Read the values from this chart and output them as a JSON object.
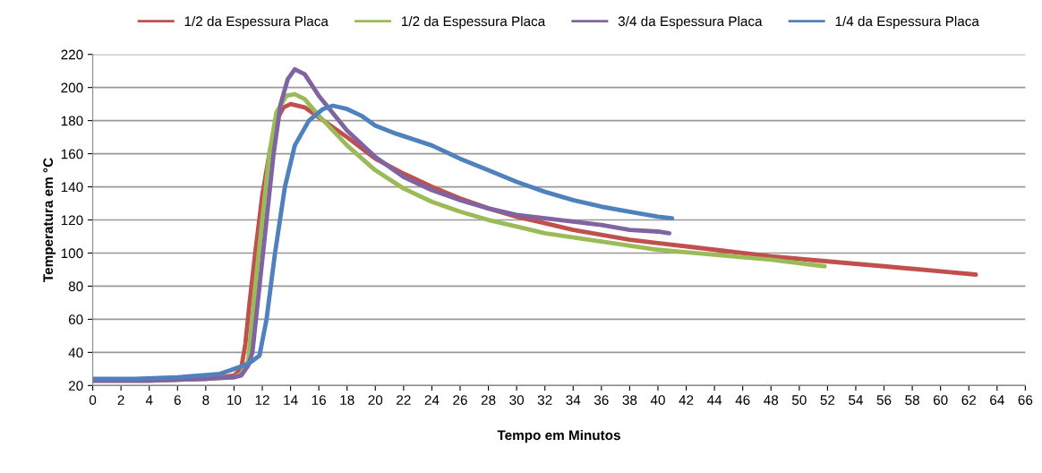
{
  "chart_data": {
    "type": "line",
    "xlabel": "Tempo em Minutos",
    "ylabel": "Temperatura em °C",
    "xlim": [
      0,
      66
    ],
    "xticks": [
      0,
      2,
      4,
      6,
      8,
      10,
      12,
      14,
      16,
      18,
      20,
      22,
      24,
      26,
      28,
      30,
      32,
      34,
      36,
      38,
      40,
      42,
      44,
      46,
      48,
      50,
      52,
      54,
      56,
      58,
      60,
      62,
      64,
      66
    ],
    "ylim": [
      20,
      220
    ],
    "yticks": [
      20,
      40,
      60,
      80,
      100,
      120,
      140,
      160,
      180,
      200,
      220
    ],
    "grid": "y",
    "legend": "top",
    "marker": "none",
    "line_style": "solid",
    "series": [
      {
        "name": "1/2 da Espessura Placa",
        "color": "#c0504d",
        "x": [
          0,
          4,
          8,
          10,
          10.5,
          10.8,
          11.1,
          11.5,
          12,
          12.5,
          13,
          13.5,
          14,
          15,
          16,
          18,
          20,
          22,
          24,
          26,
          28,
          30,
          32,
          34,
          36,
          38,
          40,
          44,
          48,
          52,
          56,
          60,
          62.5
        ],
        "values": [
          23,
          23,
          24,
          26,
          30,
          45,
          70,
          100,
          135,
          160,
          180,
          188,
          190,
          188,
          182,
          170,
          157,
          148,
          140,
          133,
          127,
          122,
          118,
          114,
          111,
          108,
          106,
          102,
          98,
          95,
          92,
          89,
          87
        ]
      },
      {
        "name": "1/2 da Espessura Placa",
        "color": "#9bbb59",
        "x": [
          0,
          4,
          8,
          10,
          10.5,
          11,
          11.5,
          12,
          12.5,
          13,
          13.7,
          14.3,
          15,
          16,
          18,
          20,
          22,
          24,
          26,
          28,
          30,
          32,
          36,
          40,
          44,
          48,
          51.8
        ],
        "values": [
          23,
          23,
          24,
          25,
          27,
          35,
          80,
          120,
          160,
          185,
          195,
          196,
          193,
          183,
          165,
          150,
          139,
          131,
          125,
          120,
          116,
          112,
          107,
          102,
          99,
          96,
          92
        ]
      },
      {
        "name": "3/4 da Espessura Placa",
        "color": "#8064a2",
        "x": [
          0,
          4,
          8,
          10,
          10.5,
          11,
          11.3,
          11.8,
          12.3,
          12.8,
          13.3,
          13.8,
          14.3,
          15,
          16,
          18,
          20,
          22,
          24,
          26,
          28,
          30,
          32,
          34,
          36,
          38,
          40,
          40.8
        ],
        "values": [
          23,
          23,
          24,
          25,
          26,
          32,
          40,
          80,
          120,
          160,
          190,
          205,
          211,
          208,
          195,
          174,
          158,
          146,
          138,
          132,
          127,
          123,
          121,
          119,
          117,
          114,
          113,
          112
        ]
      },
      {
        "name": "1/4 da Espessura Placa",
        "color": "#4f81bd",
        "x": [
          0,
          3,
          6,
          9,
          10,
          11,
          11.8,
          12.3,
          12.9,
          13.6,
          14.3,
          15.3,
          16.3,
          17,
          18,
          19,
          20,
          21.5,
          24,
          26,
          28,
          30,
          32,
          34,
          36,
          38,
          40,
          41
        ],
        "values": [
          24,
          24,
          25,
          27,
          30,
          33,
          38,
          60,
          100,
          140,
          165,
          180,
          187,
          189,
          187,
          183,
          177,
          172,
          165,
          157,
          150,
          143,
          137,
          132,
          128,
          125,
          122,
          121
        ]
      }
    ]
  }
}
